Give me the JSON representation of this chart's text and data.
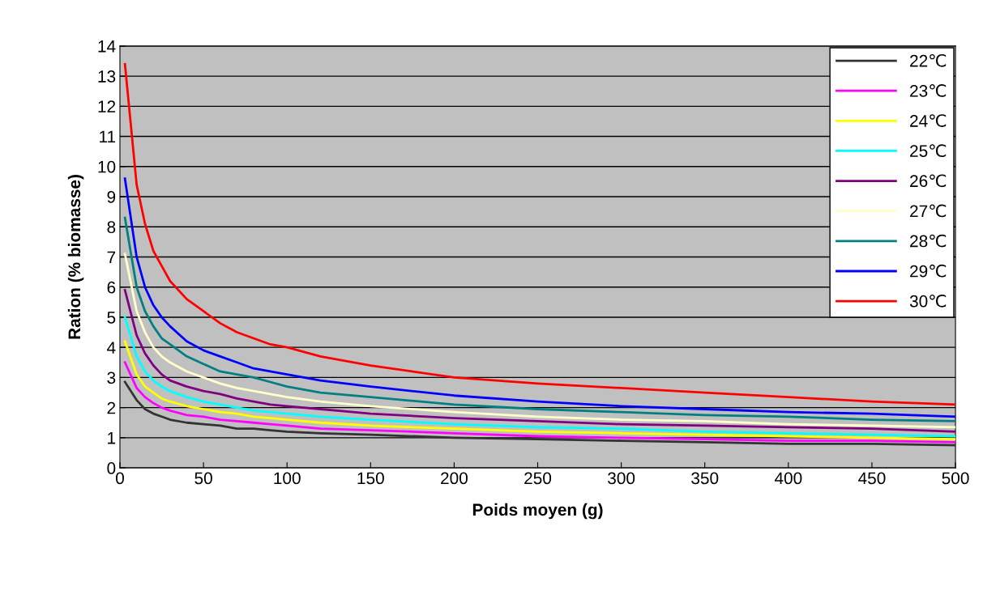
{
  "chart_data": {
    "type": "line",
    "xlabel": "Poids moyen (g)",
    "ylabel": "Ration (% biomasse)",
    "x": [
      3,
      10,
      15,
      20,
      25,
      30,
      40,
      50,
      60,
      70,
      80,
      90,
      100,
      120,
      150,
      200,
      250,
      300,
      350,
      400,
      450,
      500
    ],
    "series": [
      {
        "name": "22℃",
        "color": "#333333",
        "values": [
          2.85,
          2.25,
          1.95,
          1.8,
          1.7,
          1.6,
          1.5,
          1.45,
          1.4,
          1.3,
          1.3,
          1.25,
          1.2,
          1.15,
          1.1,
          1.0,
          0.95,
          0.9,
          0.85,
          0.8,
          0.8,
          0.75
        ]
      },
      {
        "name": "23℃",
        "color": "#ff00ff",
        "values": [
          3.5,
          2.65,
          2.35,
          2.15,
          2.0,
          1.9,
          1.75,
          1.7,
          1.6,
          1.55,
          1.5,
          1.45,
          1.4,
          1.3,
          1.25,
          1.15,
          1.05,
          1.0,
          0.95,
          0.9,
          0.9,
          0.85
        ]
      },
      {
        "name": "24℃",
        "color": "#ffff00",
        "values": [
          4.2,
          3.1,
          2.7,
          2.5,
          2.3,
          2.2,
          2.05,
          1.95,
          1.85,
          1.8,
          1.7,
          1.65,
          1.6,
          1.5,
          1.4,
          1.3,
          1.2,
          1.15,
          1.1,
          1.05,
          1.0,
          0.95
        ]
      },
      {
        "name": "25℃",
        "color": "#00ffff",
        "values": [
          5.0,
          3.7,
          3.2,
          2.9,
          2.7,
          2.55,
          2.35,
          2.2,
          2.1,
          2.0,
          1.9,
          1.85,
          1.8,
          1.7,
          1.6,
          1.45,
          1.35,
          1.3,
          1.2,
          1.15,
          1.1,
          1.05
        ]
      },
      {
        "name": "26℃",
        "color": "#800080",
        "values": [
          5.9,
          4.4,
          3.8,
          3.4,
          3.1,
          2.9,
          2.7,
          2.55,
          2.45,
          2.3,
          2.2,
          2.1,
          2.05,
          1.95,
          1.8,
          1.65,
          1.55,
          1.45,
          1.4,
          1.35,
          1.3,
          1.2
        ]
      },
      {
        "name": "27℃",
        "color": "#ffffcc",
        "values": [
          7.1,
          5.2,
          4.5,
          4.0,
          3.7,
          3.5,
          3.2,
          3.0,
          2.8,
          2.65,
          2.55,
          2.45,
          2.35,
          2.2,
          2.05,
          1.85,
          1.7,
          1.6,
          1.55,
          1.45,
          1.4,
          1.35
        ]
      },
      {
        "name": "28℃",
        "color": "#008080",
        "values": [
          8.3,
          6.0,
          5.2,
          4.7,
          4.3,
          4.1,
          3.7,
          3.45,
          3.2,
          3.1,
          3.0,
          2.85,
          2.7,
          2.5,
          2.35,
          2.1,
          1.95,
          1.85,
          1.75,
          1.7,
          1.6,
          1.55
        ]
      },
      {
        "name": "29℃",
        "color": "#0000ff",
        "values": [
          9.6,
          7.0,
          6.0,
          5.4,
          5.0,
          4.7,
          4.2,
          3.9,
          3.7,
          3.5,
          3.3,
          3.2,
          3.1,
          2.9,
          2.7,
          2.4,
          2.2,
          2.05,
          1.95,
          1.85,
          1.8,
          1.7
        ]
      },
      {
        "name": "30℃",
        "color": "#ff0000",
        "values": [
          13.4,
          9.4,
          8.1,
          7.2,
          6.7,
          6.2,
          5.6,
          5.2,
          4.8,
          4.5,
          4.3,
          4.1,
          4.0,
          3.7,
          3.4,
          3.0,
          2.8,
          2.65,
          2.5,
          2.35,
          2.2,
          2.1
        ]
      }
    ],
    "xlim": [
      0,
      500
    ],
    "xticks": [
      0,
      50,
      100,
      150,
      200,
      250,
      300,
      350,
      400,
      450,
      500
    ],
    "ylim": [
      0,
      14
    ],
    "yticks": [
      0,
      1,
      2,
      3,
      4,
      5,
      6,
      7,
      8,
      9,
      10,
      11,
      12,
      13,
      14
    ],
    "grid": "y",
    "legend": "top right",
    "marker": "none",
    "line_style": "solid"
  }
}
